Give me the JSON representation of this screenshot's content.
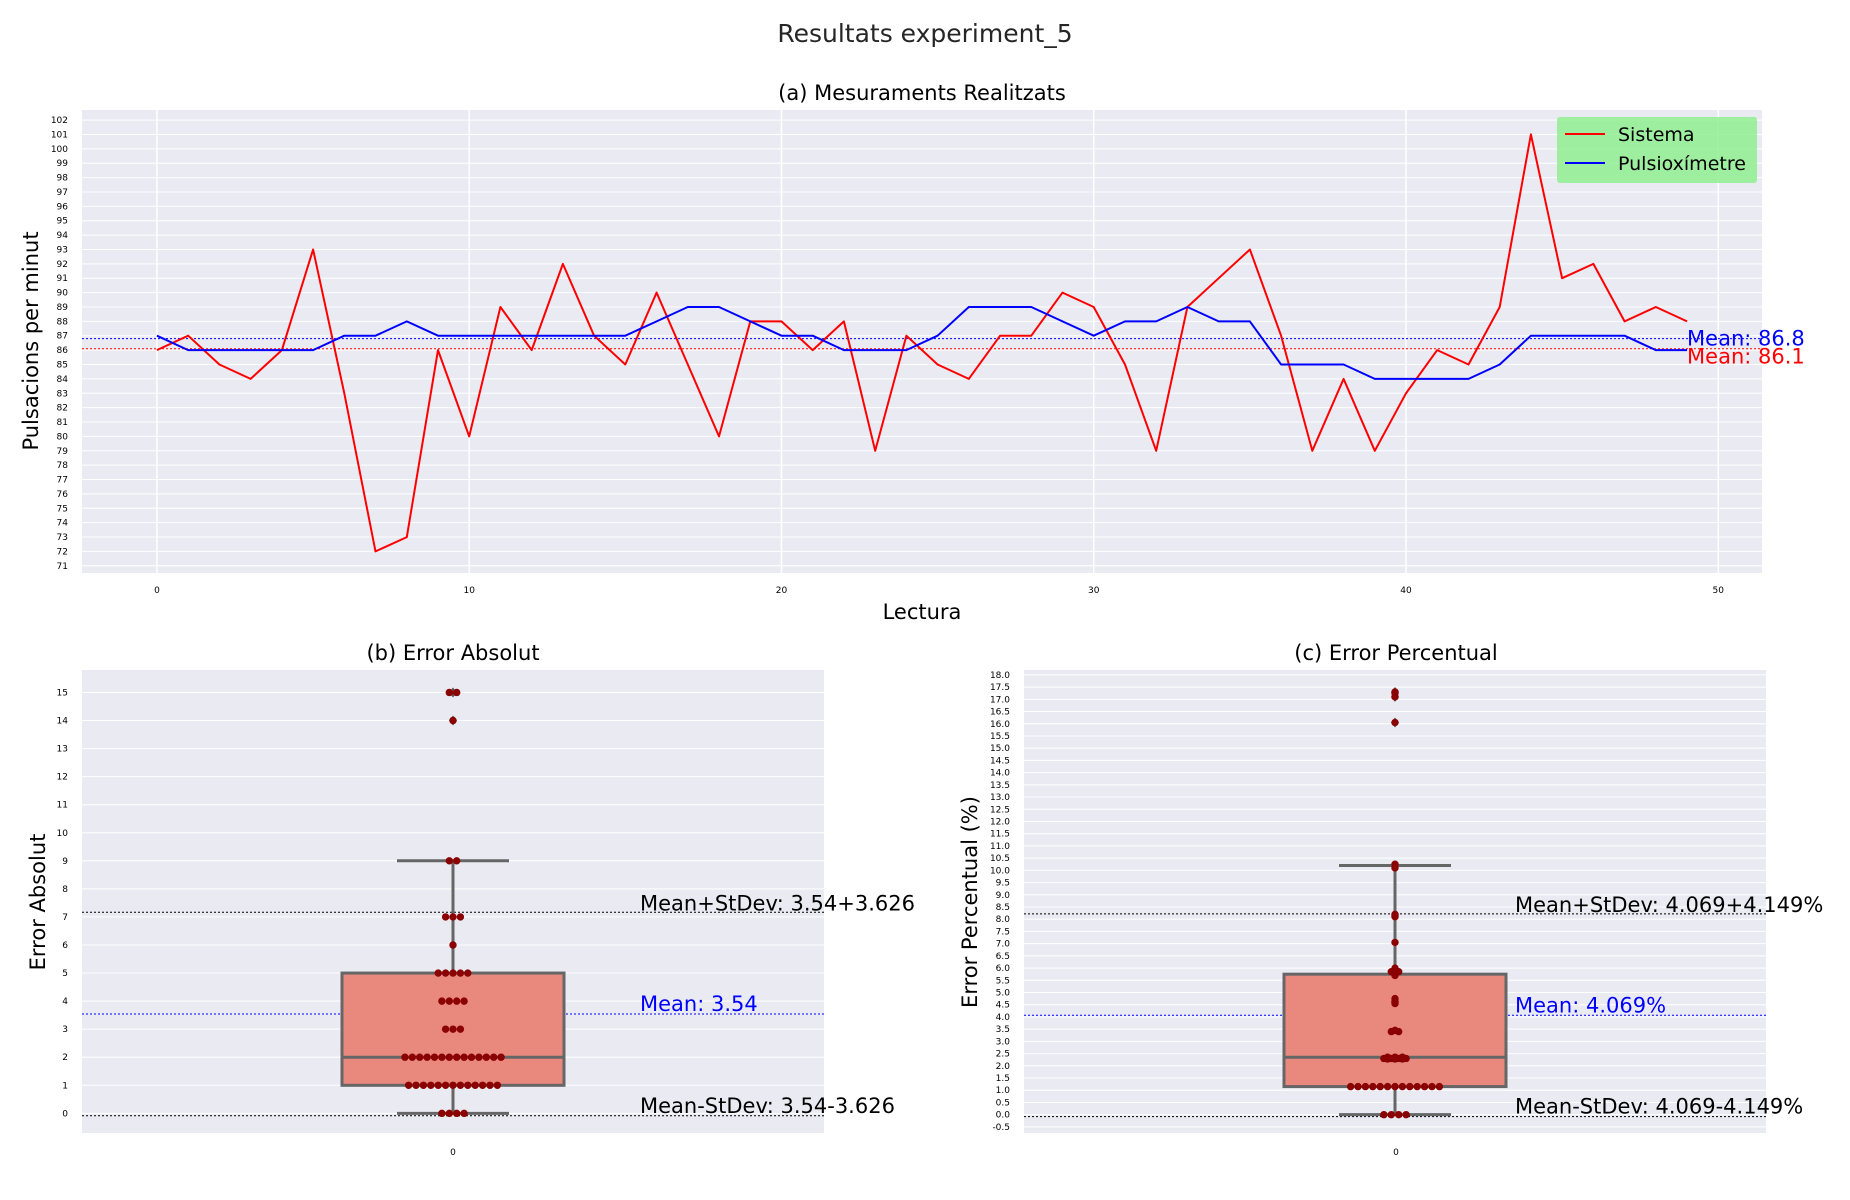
{
  "suptitle": "Resultats experiment_5",
  "colors": {
    "sistema": "#ff0000",
    "pulsiox": "#0000ff",
    "mean_label": "#0000ff",
    "box_fill": "#e9897e",
    "swarm": "#8b0000",
    "plot_bg": "#eaeaf2",
    "legend_bg": "#90ee90"
  },
  "chart_data": [
    {
      "type": "line",
      "title": "(a) Mesuraments Realitzats",
      "xlabel": "Lectura",
      "ylabel": "Pulsacions per minut",
      "xlim": [
        -2.4,
        51.4
      ],
      "ylim": [
        70.5,
        102.7
      ],
      "xticks": [
        0,
        10,
        20,
        30,
        40,
        50
      ],
      "yticks": [
        71,
        72,
        73,
        74,
        75,
        76,
        77,
        78,
        79,
        80,
        81,
        82,
        83,
        84,
        85,
        86,
        87,
        88,
        89,
        90,
        91,
        92,
        93,
        94,
        95,
        96,
        97,
        98,
        99,
        100,
        101,
        102
      ],
      "grid": true,
      "legend_position": "top-right",
      "x": [
        0,
        1,
        2,
        3,
        4,
        5,
        6,
        7,
        8,
        9,
        10,
        11,
        12,
        13,
        14,
        15,
        16,
        17,
        18,
        19,
        20,
        21,
        22,
        23,
        24,
        25,
        26,
        27,
        28,
        29,
        30,
        31,
        32,
        33,
        34,
        35,
        36,
        37,
        38,
        39,
        40,
        41,
        42,
        43,
        44,
        45,
        46,
        47,
        48,
        49
      ],
      "series": [
        {
          "name": "Sistema",
          "color": "#ff0000",
          "values": [
            86,
            87,
            85,
            84,
            86,
            93,
            83,
            72,
            73,
            86,
            80,
            89,
            86,
            92,
            87,
            85,
            90,
            85,
            80,
            88,
            88,
            86,
            88,
            79,
            87,
            85,
            84,
            87,
            87,
            90,
            89,
            85,
            79,
            89,
            91,
            93,
            87,
            79,
            84,
            79,
            83,
            86,
            85,
            89,
            101,
            91,
            92,
            88,
            89,
            88
          ]
        },
        {
          "name": "Pulsioxímetre",
          "color": "#0000ff",
          "values": [
            87,
            86,
            86,
            86,
            86,
            86,
            87,
            87,
            88,
            87,
            87,
            87,
            87,
            87,
            87,
            87,
            88,
            89,
            89,
            88,
            87,
            87,
            86,
            86,
            86,
            87,
            89,
            89,
            89,
            88,
            87,
            88,
            88,
            89,
            88,
            88,
            85,
            85,
            85,
            84,
            84,
            84,
            84,
            85,
            87,
            87,
            87,
            87,
            86,
            86
          ]
        }
      ],
      "mean_lines": [
        {
          "label": "Mean: 86.8",
          "value": 86.8,
          "color": "#0000ff"
        },
        {
          "label": "Mean: 86.1",
          "value": 86.1,
          "color": "#ff0000"
        }
      ]
    },
    {
      "type": "box",
      "title": "(b) Error Absolut",
      "ylabel": "Error Absolut",
      "category": "0",
      "ylim": [
        -0.7,
        15.8
      ],
      "yticks": [
        0,
        1,
        2,
        3,
        4,
        5,
        6,
        7,
        8,
        9,
        10,
        11,
        12,
        13,
        14,
        15
      ],
      "box": {
        "q1": 1,
        "median": 2,
        "q3": 5,
        "whisker_low": 0,
        "whisker_high": 9
      },
      "points": [
        0,
        0,
        0,
        0,
        1,
        1,
        1,
        1,
        1,
        1,
        1,
        1,
        1,
        1,
        1,
        1,
        1,
        2,
        2,
        2,
        2,
        2,
        2,
        2,
        2,
        2,
        2,
        2,
        2,
        2,
        2,
        3,
        3,
        3,
        4,
        4,
        4,
        4,
        5,
        5,
        5,
        5,
        5,
        6,
        7,
        7,
        7,
        9,
        9,
        14,
        15,
        15
      ],
      "outliers": [
        14,
        15
      ],
      "mean": 3.54,
      "stdev": 3.626,
      "annotations": {
        "upper": "Mean+StDev: 3.54+3.626",
        "mean": "Mean: 3.54",
        "lower": "Mean-StDev: 3.54-3.626"
      }
    },
    {
      "type": "box",
      "title": "(c) Error Percentual",
      "ylabel": "Error Percentual (%)",
      "category": "0",
      "ylim": [
        -0.75,
        18.2
      ],
      "yticks": [
        -0.5,
        0.0,
        0.5,
        1.0,
        1.5,
        2.0,
        2.5,
        3.0,
        3.5,
        4.0,
        4.5,
        5.0,
        5.5,
        6.0,
        6.5,
        7.0,
        7.5,
        8.0,
        8.5,
        9.0,
        9.5,
        10.0,
        10.5,
        11.0,
        11.5,
        12.0,
        12.5,
        13.0,
        13.5,
        14.0,
        14.5,
        15.0,
        15.5,
        16.0,
        16.5,
        17.0,
        17.5,
        18.0
      ],
      "box": {
        "q1": 1.15,
        "median": 2.35,
        "q3": 5.75,
        "whisker_low": 0,
        "whisker_high": 10.2
      },
      "points": [
        0,
        0,
        0,
        0,
        1.15,
        1.15,
        1.15,
        1.15,
        1.15,
        1.15,
        1.15,
        1.15,
        1.15,
        1.15,
        1.15,
        1.15,
        1.15,
        2.28,
        2.28,
        2.28,
        2.3,
        2.3,
        2.3,
        2.3,
        2.32,
        2.32,
        2.32,
        2.35,
        2.35,
        2.35,
        3.4,
        3.4,
        3.45,
        4.55,
        4.6,
        4.65,
        4.75,
        5.7,
        5.75,
        5.8,
        5.85,
        5.85,
        6.0,
        7.05,
        8.1,
        8.15,
        8.2,
        10.1,
        10.25,
        16.05,
        17.1,
        17.25,
        17.3
      ],
      "outliers": [
        16.05,
        17.1,
        17.3
      ],
      "mean": 4.069,
      "stdev": 4.149,
      "annotations": {
        "upper": "Mean+StDev: 4.069+4.149%",
        "mean": "Mean: 4.069%",
        "lower": "Mean-StDev: 4.069-4.149%"
      }
    }
  ]
}
